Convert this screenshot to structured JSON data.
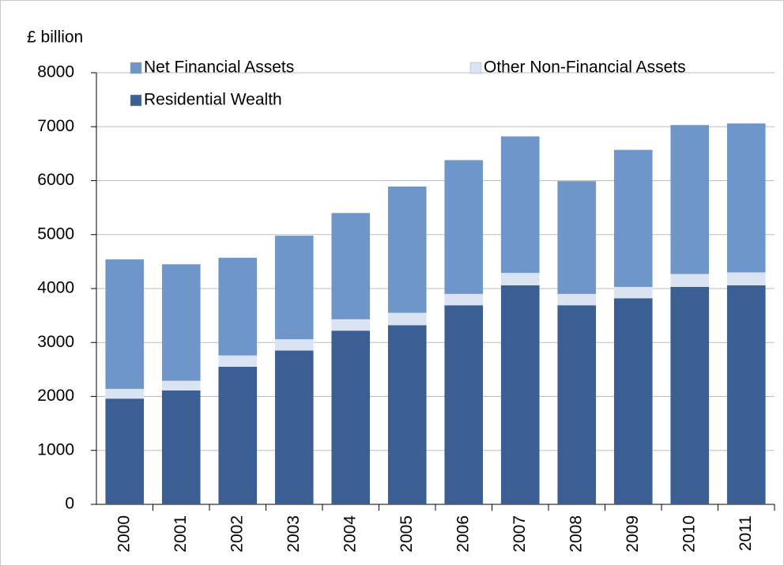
{
  "chart_data": {
    "type": "stacked_bar",
    "y_label": "£ billion",
    "categories": [
      "2000",
      "2001",
      "2002",
      "2003",
      "2004",
      "2005",
      "2006",
      "2007",
      "2008",
      "2009",
      "2010",
      "2011"
    ],
    "series": [
      {
        "name": "Residential Wealth",
        "color": "#3c5f93",
        "values": [
          1960,
          2110,
          2550,
          2850,
          3220,
          3320,
          3690,
          4060,
          3690,
          3820,
          4030,
          4060
        ]
      },
      {
        "name": "Other Non-Financial Assets",
        "color": "#d9e3f1",
        "values": [
          180,
          180,
          210,
          210,
          210,
          230,
          210,
          230,
          210,
          210,
          240,
          240
        ]
      },
      {
        "name": "Net Financial Assets",
        "color": "#6f96c8",
        "values": [
          2400,
          2160,
          1810,
          1920,
          1970,
          2340,
          2480,
          2530,
          2090,
          2540,
          2760,
          2760
        ]
      }
    ],
    "ylim": [
      0,
      8000
    ],
    "yticks": [
      0,
      1000,
      2000,
      3000,
      4000,
      5000,
      6000,
      7000,
      8000
    ],
    "grid": true
  }
}
